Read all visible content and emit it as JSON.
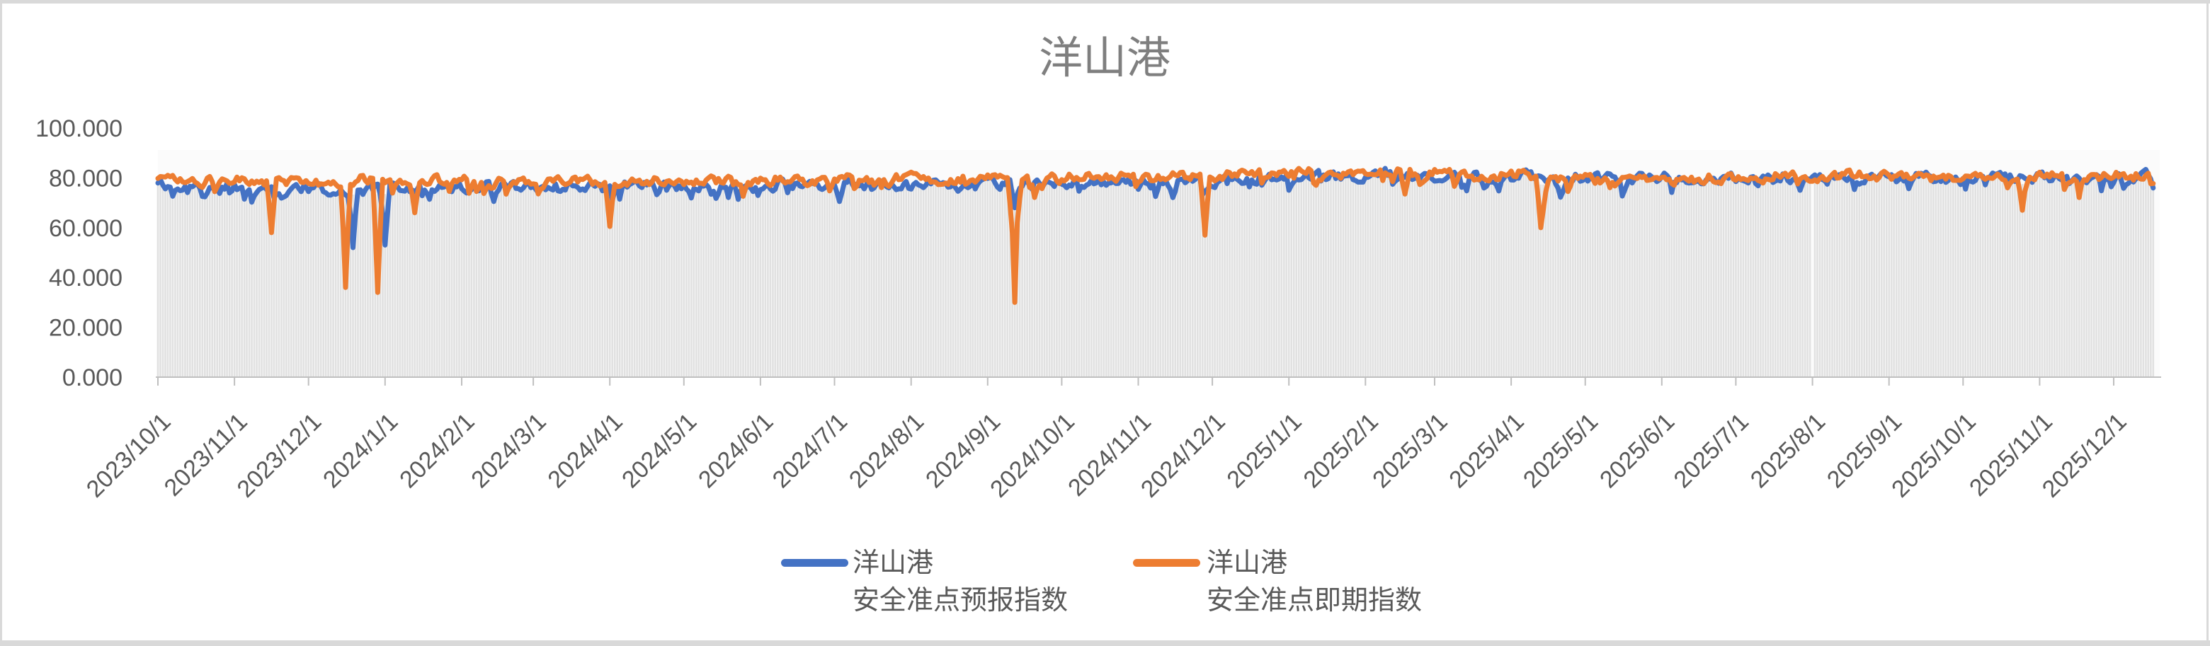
{
  "window": {
    "background": "#ffffff",
    "frame_color": "#d9d9d9"
  },
  "chart_data": {
    "type": "line",
    "title": "洋山港",
    "title_color": "#7f7f7f",
    "label_color": "#595959",
    "axis_color": "#bfbfbf",
    "column_color": "#e1e1e1",
    "plot_background": "#ffffff",
    "grid": "vertical daily drop-line columns, no horizontal gridlines",
    "legend_position": "bottom-center",
    "points": "daily",
    "x_start": "2023/10/1",
    "x_end": "2025/12/17",
    "ylim": [
      0,
      100
    ],
    "y_tick_labels": [
      "0.000",
      "20.000",
      "40.000",
      "60.000",
      "80.000",
      "100.000"
    ],
    "x_tick_labels": [
      "2023/10/1",
      "2023/11/1",
      "2023/12/1",
      "2024/1/1",
      "2024/2/1",
      "2024/3/1",
      "2024/4/1",
      "2024/5/1",
      "2024/6/1",
      "2024/7/1",
      "2024/8/1",
      "2024/9/1",
      "2024/10/1",
      "2024/11/1",
      "2024/12/1",
      "2025/1/1",
      "2025/2/1",
      "2025/3/1",
      "2025/4/1",
      "2025/5/1",
      "2025/6/1",
      "2025/7/1",
      "2025/8/1",
      "2025/9/1",
      "2025/10/1",
      "2025/11/1",
      "2025/12/1"
    ],
    "series": [
      {
        "name": "洋山港 安全准点预报指数",
        "name_lines": [
          "洋山港",
          "安全准点预报指数"
        ],
        "color": "#4472C4",
        "role": "forecast"
      },
      {
        "name": "洋山港 安全准点即期指数",
        "name_lines": [
          "洋山港",
          "安全准点即期指数"
        ],
        "color": "#ED7D31",
        "role": "spot"
      }
    ],
    "envelope_anchors": [
      [
        "2023/10/1",
        76.5,
        79.5
      ],
      [
        "2023/11/1",
        76.0,
        79.3
      ],
      [
        "2023/12/1",
        75.5,
        79.0
      ],
      [
        "2024/1/1",
        76.0,
        79.0
      ],
      [
        "2024/2/1",
        76.5,
        79.2
      ],
      [
        "2024/3/1",
        76.8,
        79.0
      ],
      [
        "2024/4/1",
        77.0,
        78.6
      ],
      [
        "2024/5/1",
        77.0,
        78.6
      ],
      [
        "2024/6/1",
        77.3,
        78.8
      ],
      [
        "2024/7/1",
        77.0,
        78.8
      ],
      [
        "2024/8/1",
        77.4,
        79.3
      ],
      [
        "2024/9/1",
        77.8,
        79.8
      ],
      [
        "2024/10/1",
        78.0,
        80.0
      ],
      [
        "2024/11/1",
        78.5,
        80.3
      ],
      [
        "2024/12/1",
        79.0,
        80.6
      ],
      [
        "2025/1/1",
        80.3,
        81.8
      ],
      [
        "2025/2/1",
        81.0,
        82.3
      ],
      [
        "2025/3/1",
        80.6,
        81.6
      ],
      [
        "2025/4/1",
        80.0,
        81.0
      ],
      [
        "2025/5/1",
        79.6,
        79.4
      ],
      [
        "2025/6/1",
        79.5,
        78.8
      ],
      [
        "2025/7/1",
        79.6,
        79.6
      ],
      [
        "2025/8/1",
        80.0,
        80.6
      ],
      [
        "2025/9/1",
        80.0,
        80.8
      ],
      [
        "2025/10/1",
        80.3,
        80.8
      ],
      [
        "2025/11/1",
        80.0,
        80.5
      ],
      [
        "2025/12/1",
        80.2,
        80.7
      ],
      [
        "2025/12/17",
        80.3,
        80.8
      ]
    ],
    "notable_dips": [
      {
        "date": "2023/11/16",
        "series": "spot",
        "value": 58
      },
      {
        "date": "2023/12/16",
        "series": "spot",
        "value": 36
      },
      {
        "date": "2023/12/19",
        "series": "forecast",
        "value": 52
      },
      {
        "date": "2023/12/29",
        "series": "spot",
        "value": 34
      },
      {
        "date": "2024/1/1",
        "series": "forecast",
        "value": 53
      },
      {
        "date": "2024/1/13",
        "series": "spot",
        "value": 66
      },
      {
        "date": "2024/2/14",
        "series": "forecast",
        "value": 70.5
      },
      {
        "date": "2024/4/1",
        "series": "spot",
        "value": 60.5
      },
      {
        "date": "2024/7/3",
        "series": "forecast",
        "value": 70.5
      },
      {
        "date": "2024/9/11",
        "series": "spot",
        "value": 58
      },
      {
        "date": "2024/9/12",
        "series": "spot",
        "value": 30
      },
      {
        "date": "2024/9/12",
        "series": "forecast",
        "value": 68
      },
      {
        "date": "2024/9/13",
        "series": "spot",
        "value": 62
      },
      {
        "date": "2024/11/28",
        "series": "spot",
        "value": 57
      },
      {
        "date": "2025/2/17",
        "series": "spot",
        "value": 73.5
      },
      {
        "date": "2025/4/13",
        "series": "spot",
        "value": 60
      },
      {
        "date": "2025/4/14",
        "series": "spot",
        "value": 67
      },
      {
        "date": "2025/7/27",
        "series": "forecast",
        "value": 75
      },
      {
        "date": "2025/10/25",
        "series": "spot",
        "value": 67
      }
    ],
    "missing_dates": [
      "2025/8/1"
    ],
    "daily_noise": {
      "forecast": {
        "amp": 2.1,
        "spike_p": 0.1,
        "spike_max": 5.0
      },
      "spot": {
        "amp": 1.9,
        "spike_p": 0.07,
        "spike_max": 6.0
      },
      "smoothing": 0.45,
      "wobble_amp": 0.9
    }
  }
}
